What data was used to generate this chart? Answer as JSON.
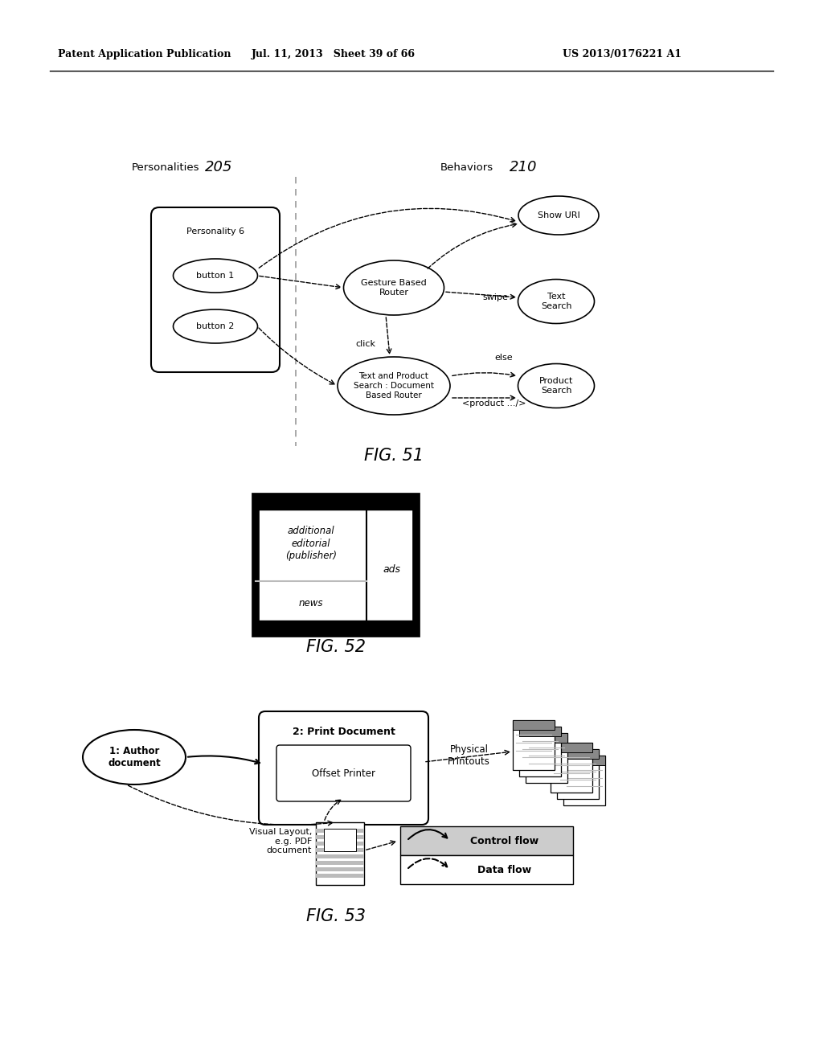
{
  "header_left": "Patent Application Publication",
  "header_mid": "Jul. 11, 2013   Sheet 39 of 66",
  "header_right": "US 2013/0176221 A1",
  "fig51_label": "FIG. 51",
  "fig52_label": "FIG. 52",
  "fig53_label": "FIG. 53",
  "personalities_label": "Personalities",
  "personalities_num": "205",
  "behaviors_label": "Behaviors",
  "behaviors_num": "210",
  "personality6_label": "Personality 6",
  "button1_label": "button 1",
  "button2_label": "button 2",
  "gesture_router_label": "Gesture Based\nRouter",
  "show_uri_label": "Show URI",
  "text_search_label": "Text\nSearch",
  "text_product_router_label": "Text and Product\nSearch : Document\nBased Router",
  "product_search_label": "Product\nSearch",
  "swipe_label": "swipe",
  "click_label": "click",
  "else_label": "else",
  "product_label": "<product .../>",
  "fig52_top_label": "additional\neditorial\n(publisher)",
  "fig52_ads_label": "ads",
  "fig52_news_label": "news",
  "fig53_author_label": "1: Author\ndocument",
  "fig53_print_doc_label": "2: Print Document",
  "fig53_offset_printer_label": "Offset Printer",
  "fig53_physical_label": "Physical\nPrintouts",
  "fig53_visual_label": "Visual Layout,\ne.g. PDF\ndocument",
  "fig53_control_label": "Control flow",
  "fig53_data_label": "Data flow",
  "bg_color": "#ffffff",
  "text_color": "#000000"
}
